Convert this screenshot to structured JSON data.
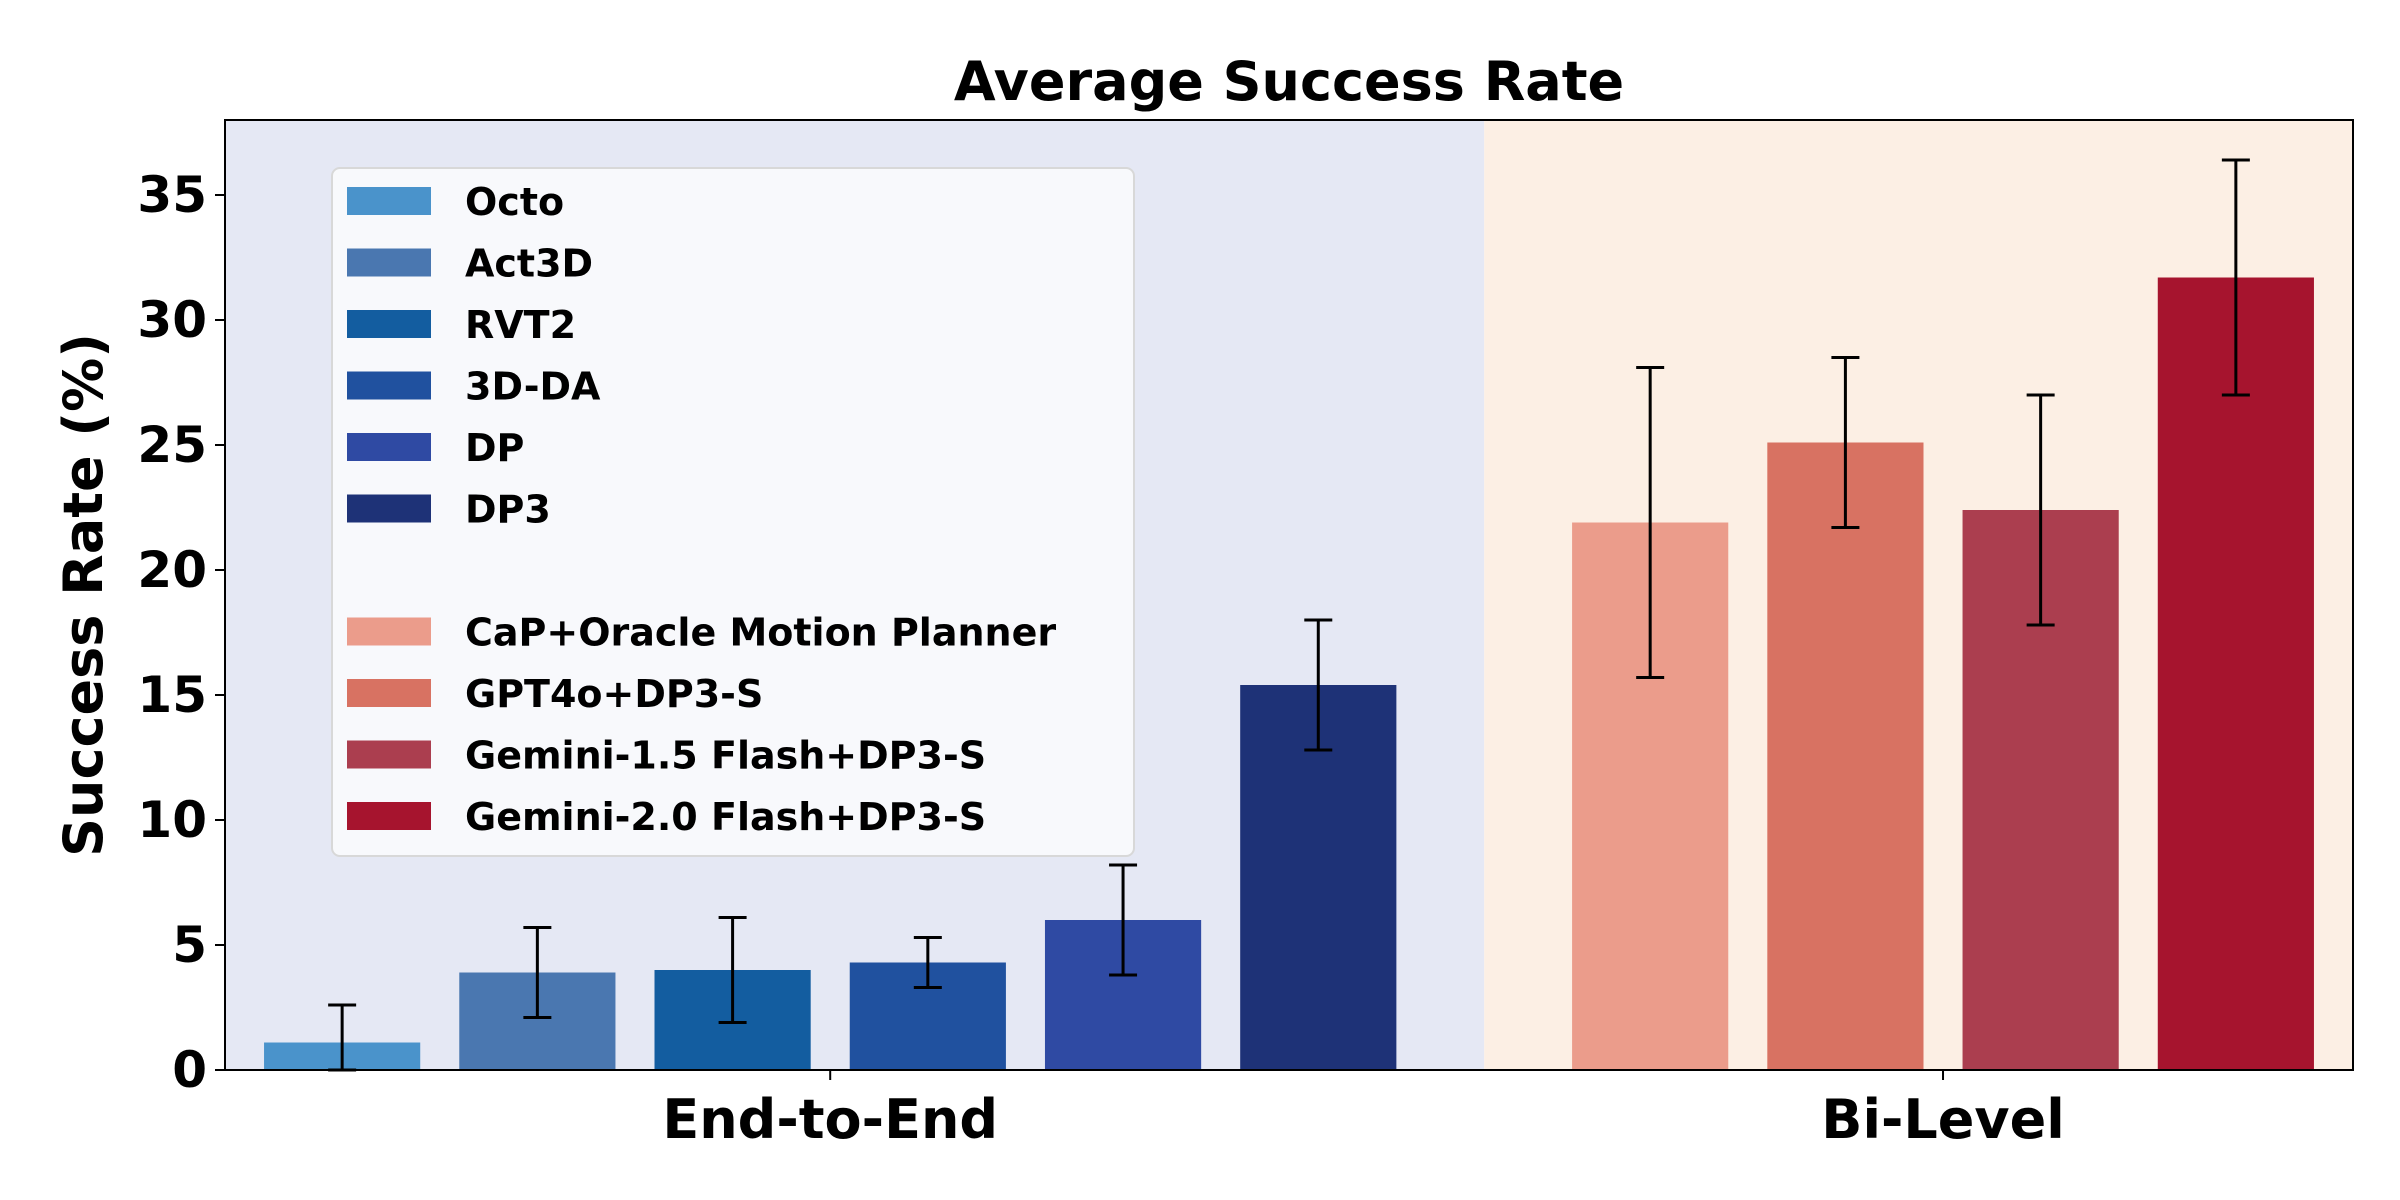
{
  "chart_data": {
    "type": "bar",
    "title": "Average Success Rate",
    "ylabel": "Success Rate (%)",
    "xlabel": "",
    "ylim": [
      0,
      38
    ],
    "yticks": [
      0,
      5,
      10,
      15,
      20,
      25,
      30,
      35
    ],
    "grid": false,
    "legend_position": "top-left",
    "groups": [
      {
        "label": "End-to-End",
        "background": "#e5e8f4",
        "series": [
          {
            "name": "Octo",
            "value": 1.1,
            "err_low": 0.0,
            "err_high": 2.6,
            "color": "#4a93cb"
          },
          {
            "name": "Act3D",
            "value": 3.9,
            "err_low": 2.1,
            "err_high": 5.7,
            "color": "#4a77b0"
          },
          {
            "name": "RVT2",
            "value": 4.0,
            "err_low": 1.9,
            "err_high": 6.1,
            "color": "#135da0"
          },
          {
            "name": "3D-DA",
            "value": 4.3,
            "err_low": 3.3,
            "err_high": 5.3,
            "color": "#20519f"
          },
          {
            "name": "DP",
            "value": 6.0,
            "err_low": 3.8,
            "err_high": 8.2,
            "color": "#2f4aa3"
          },
          {
            "name": "DP3",
            "value": 15.4,
            "err_low": 12.8,
            "err_high": 18.0,
            "color": "#1e3277"
          }
        ]
      },
      {
        "label": "Bi-Level",
        "background": "#fcefe4",
        "series": [
          {
            "name": "CaP+Oracle Motion Planner",
            "value": 21.9,
            "err_low": 15.7,
            "err_high": 28.1,
            "color": "#eb9c8b"
          },
          {
            "name": "GPT4o+DP3-S",
            "value": 25.1,
            "err_low": 21.7,
            "err_high": 28.5,
            "color": "#d87262"
          },
          {
            "name": "Gemini-1.5 Flash+DP3-S",
            "value": 22.4,
            "err_low": 17.8,
            "err_high": 27.0,
            "color": "#ab3e4f"
          },
          {
            "name": "Gemini-2.0 Flash+DP3-S",
            "value": 31.7,
            "err_low": 27.0,
            "err_high": 36.4,
            "color": "#a6142e"
          }
        ]
      }
    ]
  }
}
